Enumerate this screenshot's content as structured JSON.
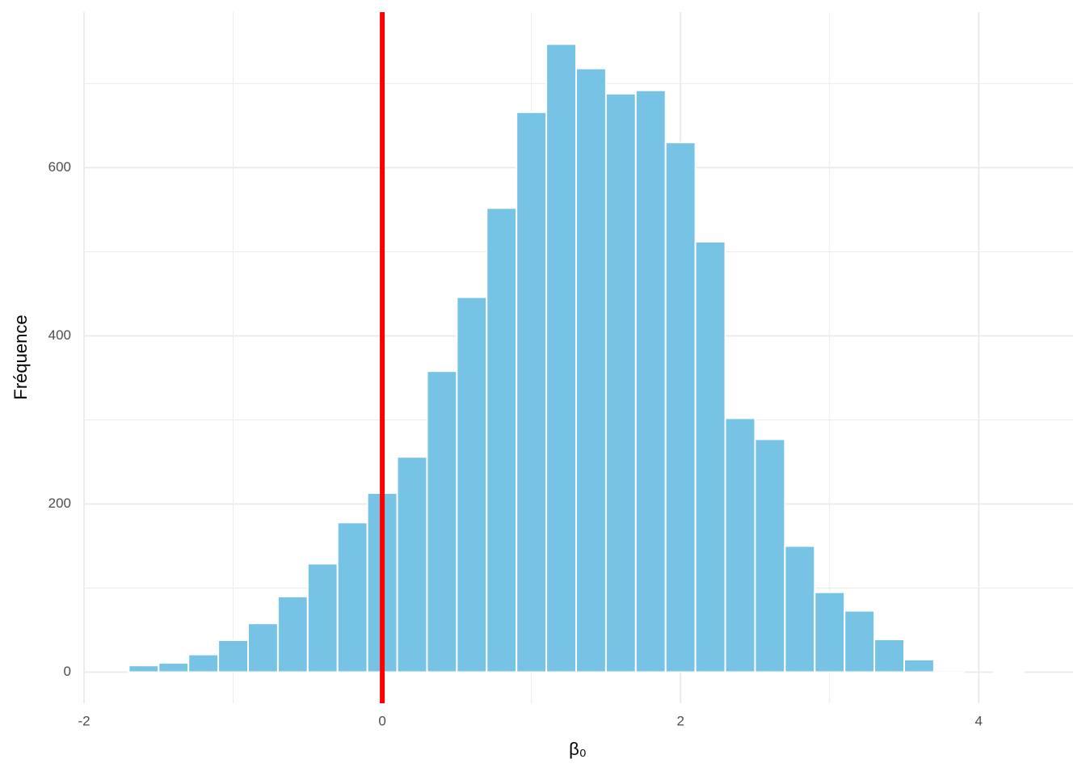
{
  "chart_data": {
    "type": "histogram",
    "xlabel": "β₀",
    "ylabel": "Fréquence",
    "bins": [
      -1.7,
      -1.5,
      -1.3,
      -1.1,
      -0.9,
      -0.7,
      -0.5,
      -0.3,
      -0.1,
      0.1,
      0.3,
      0.5,
      0.7,
      0.9,
      1.1,
      1.3,
      1.5,
      1.7,
      1.9,
      2.1,
      2.3,
      2.5,
      2.7,
      2.9,
      3.1,
      3.3,
      3.5,
      3.7,
      3.9,
      4.1,
      4.3
    ],
    "values": [
      8,
      11,
      21,
      38,
      58,
      90,
      129,
      178,
      213,
      256,
      358,
      446,
      552,
      666,
      747,
      718,
      688,
      692,
      630,
      512,
      302,
      277,
      150,
      95,
      73,
      39,
      15,
      2,
      0,
      1
    ],
    "color": "#77c3e5",
    "edge_color": "#ffffff",
    "xlim": [
      -2,
      4.6
    ],
    "ylim": [
      -37,
      785
    ],
    "xticks": [
      -2,
      0,
      2,
      4
    ],
    "yticks": [
      0,
      200,
      400,
      600
    ],
    "x_minor_grid": [
      -1,
      1,
      3
    ],
    "y_minor_grid": [
      100,
      300,
      500,
      700
    ],
    "grid": true,
    "vline": {
      "value": 0,
      "color": "#ff0000"
    }
  }
}
